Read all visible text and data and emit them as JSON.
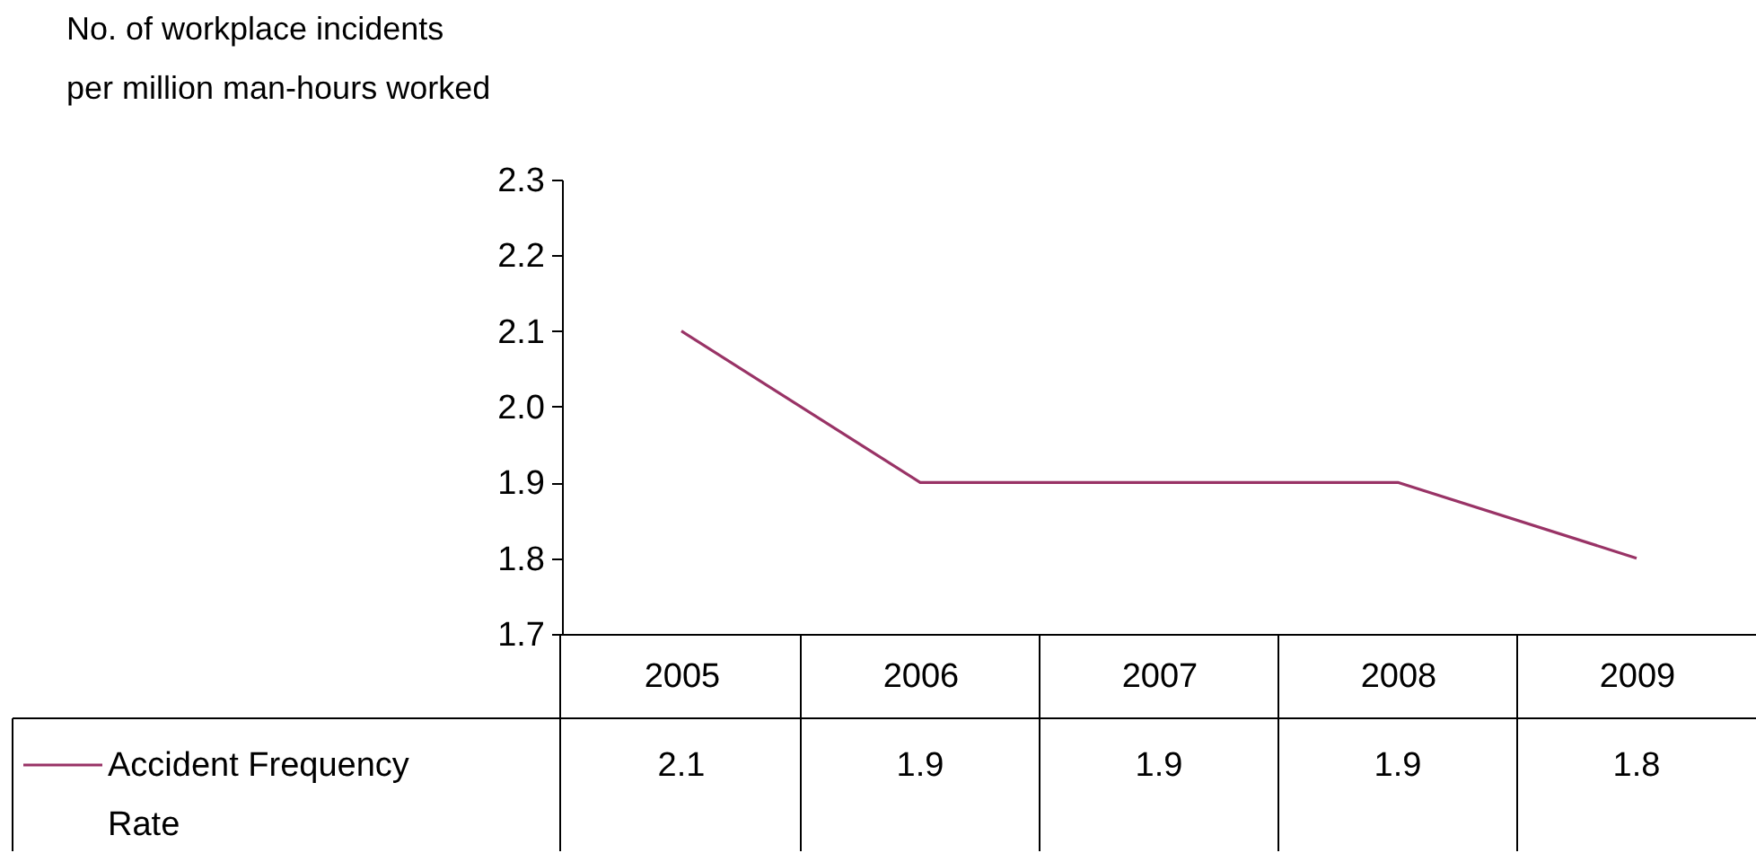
{
  "chart_data": {
    "type": "line",
    "ylabel": "No. of workplace incidents\nper million man-hours worked",
    "categories": [
      "2005",
      "2006",
      "2007",
      "2008",
      "2009"
    ],
    "series": [
      {
        "name": "Accident Frequency Rate",
        "color": "#993366",
        "values": [
          2.1,
          1.9,
          1.9,
          1.9,
          1.8
        ]
      }
    ],
    "ylim": [
      1.7,
      2.3
    ],
    "yticks": [
      1.7,
      1.8,
      1.9,
      {
        "value": 2.0,
        "label": "2.0"
      },
      2.1,
      2.2,
      2.3
    ],
    "grid": false,
    "legend": "bottom left",
    "marker": "none",
    "line_style": "solid",
    "data_labels": true
  }
}
